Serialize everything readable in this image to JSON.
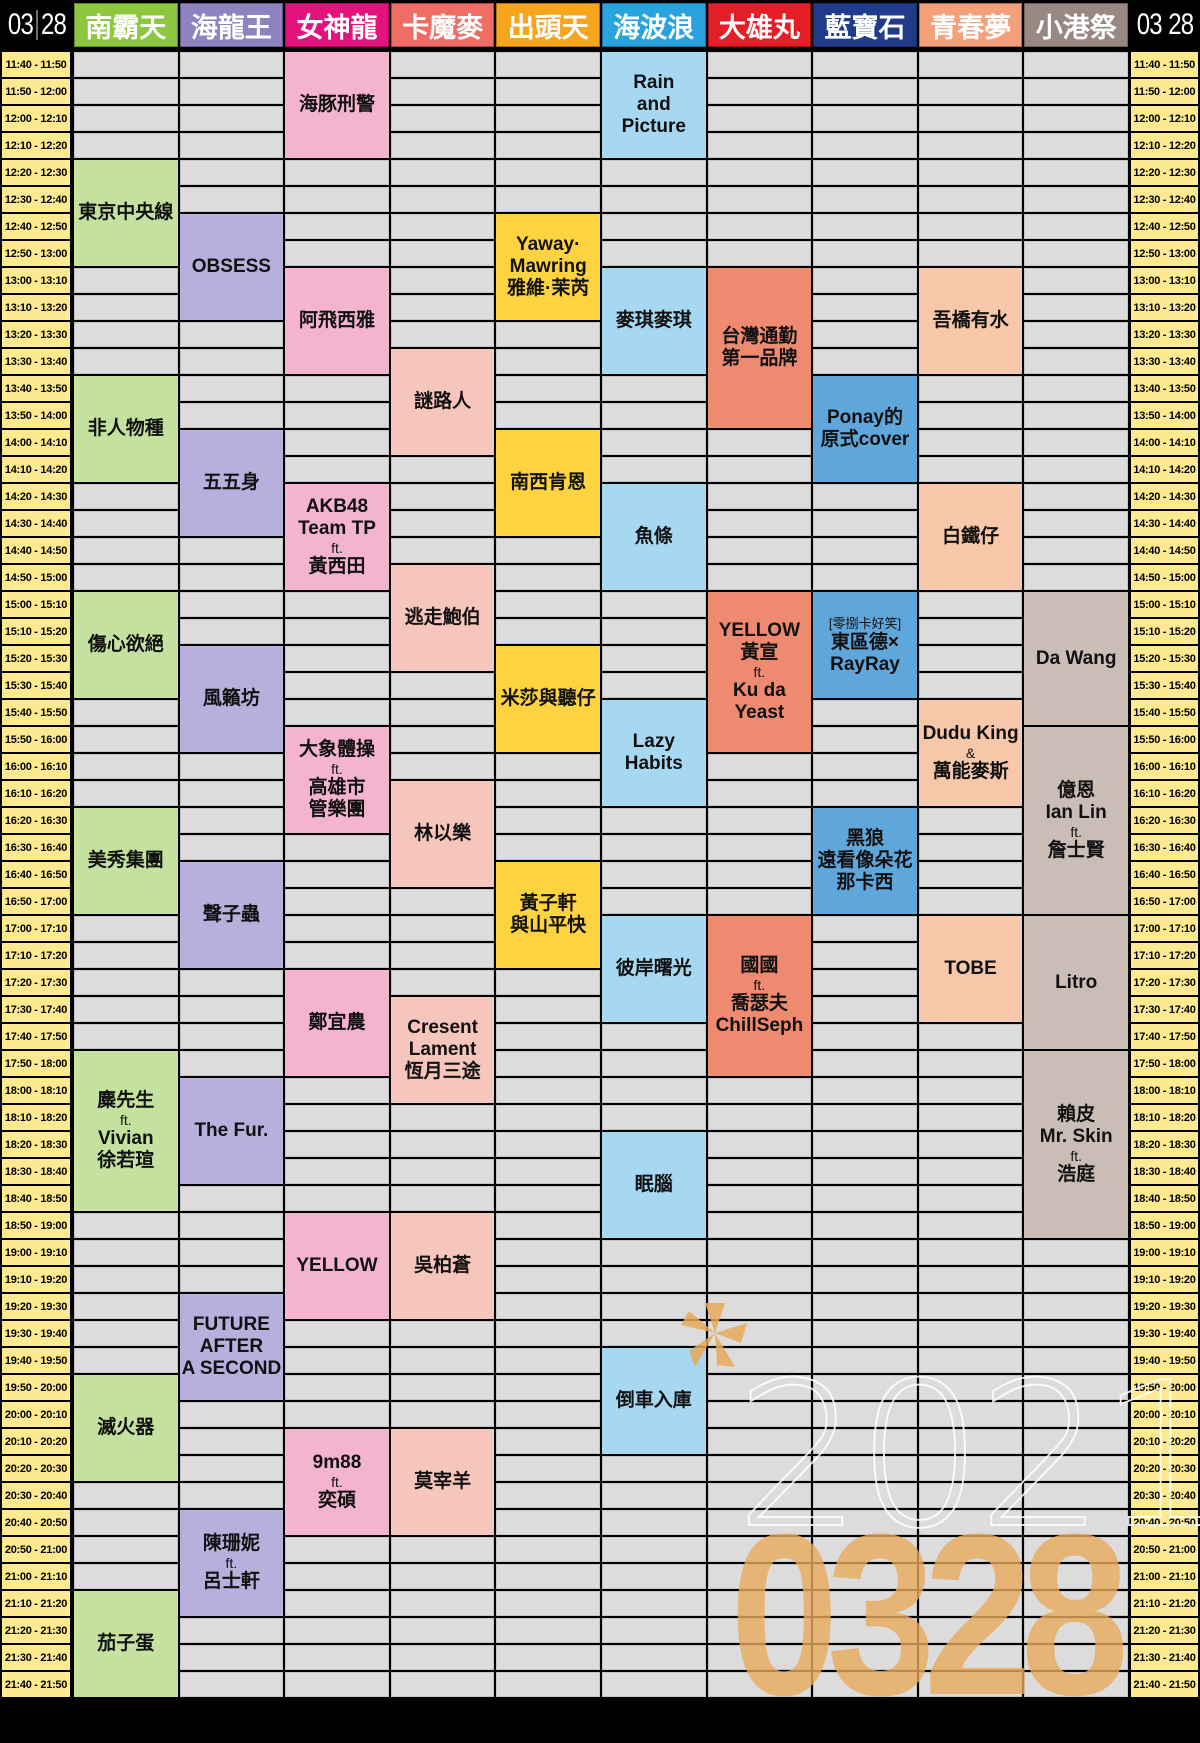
{
  "date": {
    "month": "03",
    "day": "28"
  },
  "stages": [
    {
      "name": "南霸天",
      "header_color": "#8dc63f",
      "block_color": "#c5e1a0",
      "performances": [
        {
          "start": "12:20",
          "end": "13:00",
          "lines": [
            "東京中央線"
          ]
        },
        {
          "start": "13:40",
          "end": "14:20",
          "lines": [
            "非人物種"
          ]
        },
        {
          "start": "15:00",
          "end": "15:40",
          "lines": [
            "傷心欲絕"
          ]
        },
        {
          "start": "16:20",
          "end": "17:00",
          "lines": [
            "美秀集團"
          ]
        },
        {
          "start": "17:50",
          "end": "18:50",
          "lines": [
            "麋先生",
            "ft.",
            "Vivian",
            "徐若瑄"
          ]
        },
        {
          "start": "19:50",
          "end": "20:30",
          "lines": [
            "滅火器"
          ]
        },
        {
          "start": "21:10",
          "end": "21:50",
          "lines": [
            "茄子蛋"
          ]
        }
      ]
    },
    {
      "name": "海龍王",
      "header_color": "#8f82c0",
      "block_color": "#b7afdc",
      "performances": [
        {
          "start": "12:40",
          "end": "13:20",
          "lines": [
            "OBSESS"
          ]
        },
        {
          "start": "14:00",
          "end": "14:40",
          "lines": [
            "五五身"
          ]
        },
        {
          "start": "15:20",
          "end": "16:00",
          "lines": [
            "風籟坊"
          ]
        },
        {
          "start": "16:40",
          "end": "17:20",
          "lines": [
            "聲子蟲"
          ]
        },
        {
          "start": "18:00",
          "end": "18:40",
          "lines": [
            "The Fur."
          ]
        },
        {
          "start": "19:20",
          "end": "20:00",
          "lines": [
            "FUTURE",
            "AFTER",
            "A SECOND"
          ]
        },
        {
          "start": "20:40",
          "end": "21:20",
          "lines": [
            "陳珊妮",
            "ft.",
            "呂士軒"
          ]
        }
      ]
    },
    {
      "name": "女神龍",
      "header_color": "#e4127c",
      "block_color": "#f4b4d0",
      "performances": [
        {
          "start": "11:40",
          "end": "12:20",
          "lines": [
            "海豚刑警"
          ]
        },
        {
          "start": "13:00",
          "end": "13:40",
          "lines": [
            "阿飛西雅"
          ]
        },
        {
          "start": "14:20",
          "end": "15:00",
          "lines": [
            "AKB48",
            "Team TP",
            "ft.",
            "黃西田"
          ]
        },
        {
          "start": "15:50",
          "end": "16:30",
          "lines": [
            "大象體操",
            "ft.",
            "高雄市",
            "管樂團"
          ]
        },
        {
          "start": "17:20",
          "end": "18:00",
          "lines": [
            "鄭宜農"
          ]
        },
        {
          "start": "18:50",
          "end": "19:30",
          "lines": [
            "YELLOW"
          ]
        },
        {
          "start": "20:10",
          "end": "20:50",
          "lines": [
            "9m88",
            "ft.",
            "奕碩"
          ]
        }
      ]
    },
    {
      "name": "卡魔麥",
      "header_color": "#ee6e66",
      "block_color": "#f6c5bb",
      "performances": [
        {
          "start": "13:30",
          "end": "14:10",
          "lines": [
            "謎路人"
          ]
        },
        {
          "start": "14:50",
          "end": "15:30",
          "lines": [
            "逃走鮑伯"
          ]
        },
        {
          "start": "16:10",
          "end": "16:50",
          "lines": [
            "林以樂"
          ]
        },
        {
          "start": "17:30",
          "end": "18:10",
          "lines": [
            "Cresent",
            "Lament",
            "恆月三途"
          ]
        },
        {
          "start": "18:50",
          "end": "19:30",
          "lines": [
            "吳柏蒼"
          ]
        },
        {
          "start": "20:10",
          "end": "20:50",
          "lines": [
            "莫宰羊"
          ]
        }
      ]
    },
    {
      "name": "出頭天",
      "header_color": "#f5a51e",
      "block_color": "#fdd440",
      "performances": [
        {
          "start": "12:40",
          "end": "13:20",
          "lines": [
            "Yaway·",
            "Mawring",
            "雅維·茉芮"
          ]
        },
        {
          "start": "14:00",
          "end": "14:40",
          "lines": [
            "南西肯恩"
          ]
        },
        {
          "start": "15:20",
          "end": "16:00",
          "lines": [
            "米莎與聽仔"
          ]
        },
        {
          "start": "16:40",
          "end": "17:20",
          "lines": [
            "黃子軒",
            "與山平快"
          ]
        }
      ]
    },
    {
      "name": "海波浪",
      "header_color": "#29a3dd",
      "block_color": "#a6d8f2",
      "performances": [
        {
          "start": "11:40",
          "end": "12:20",
          "lines": [
            "Rain",
            "and",
            "Picture"
          ]
        },
        {
          "start": "13:00",
          "end": "13:40",
          "lines": [
            "麥琪麥琪"
          ]
        },
        {
          "start": "14:20",
          "end": "15:00",
          "lines": [
            "魚條"
          ]
        },
        {
          "start": "15:40",
          "end": "16:20",
          "lines": [
            "Lazy",
            "Habits"
          ]
        },
        {
          "start": "17:00",
          "end": "17:40",
          "lines": [
            "彼岸曙光"
          ]
        },
        {
          "start": "18:20",
          "end": "19:00",
          "lines": [
            "眠腦"
          ]
        },
        {
          "start": "19:40",
          "end": "20:20",
          "lines": [
            "倒車入庫"
          ]
        }
      ]
    },
    {
      "name": "大雄丸",
      "header_color": "#e31e26",
      "block_color": "#ee8a6f",
      "performances": [
        {
          "start": "13:00",
          "end": "14:00",
          "lines": [
            "台灣通勤",
            "第一品牌"
          ]
        },
        {
          "start": "15:00",
          "end": "16:00",
          "lines": [
            "YELLOW",
            "黃宣",
            "ft.",
            "Ku da",
            "Yeast"
          ]
        },
        {
          "start": "17:00",
          "end": "18:00",
          "lines": [
            "國國",
            "ft.",
            "喬瑟夫",
            "ChillSeph"
          ]
        }
      ]
    },
    {
      "name": "藍寶石",
      "header_color": "#1f3b8a",
      "block_color": "#5fa6da",
      "performances": [
        {
          "start": "13:40",
          "end": "14:20",
          "lines": [
            "Ponay的",
            "原式cover"
          ]
        },
        {
          "start": "15:00",
          "end": "15:40",
          "lines": [
            "[零捌卡好笑]",
            "東區德×",
            "RayRay"
          ]
        },
        {
          "start": "16:20",
          "end": "17:00",
          "lines": [
            "黑狼",
            "遠看像朵花",
            "那卡西"
          ]
        }
      ]
    },
    {
      "name": "青春夢",
      "header_color": "#f3a07b",
      "block_color": "#f7c7a9",
      "performances": [
        {
          "start": "13:00",
          "end": "13:40",
          "lines": [
            "吾橋有水"
          ]
        },
        {
          "start": "14:20",
          "end": "15:00",
          "lines": [
            "白鐵仔"
          ]
        },
        {
          "start": "15:40",
          "end": "16:20",
          "lines": [
            "Dudu King",
            "&",
            "萬能麥斯"
          ]
        },
        {
          "start": "17:00",
          "end": "17:40",
          "lines": [
            "TOBE"
          ]
        }
      ]
    },
    {
      "name": "小港祭",
      "header_color": "#988884",
      "block_color": "#c9bdb6",
      "performances": [
        {
          "start": "15:00",
          "end": "15:50",
          "lines": [
            "Da Wang"
          ]
        },
        {
          "start": "15:50",
          "end": "17:00",
          "lines": [
            "億恩",
            "Ian Lin",
            "ft.",
            "詹士賢"
          ]
        },
        {
          "start": "17:00",
          "end": "17:50",
          "lines": [
            "Litro"
          ]
        },
        {
          "start": "17:50",
          "end": "19:00",
          "lines": [
            "賴皮",
            "Mr. Skin",
            "ft.",
            "浩庭"
          ]
        }
      ]
    }
  ],
  "time_slots": [
    "11:40 - 11:50",
    "11:50 - 12:00",
    "12:00 - 12:10",
    "12:10 - 12:20",
    "12:20 - 12:30",
    "12:30 - 12:40",
    "12:40 - 12:50",
    "12:50 - 13:00",
    "13:00 - 13:10",
    "13:10 - 13:20",
    "13:20 - 13:30",
    "13:30 - 13:40",
    "13:40 - 13:50",
    "13:50 - 14:00",
    "14:00 - 14:10",
    "14:10 - 14:20",
    "14:20 - 14:30",
    "14:30 - 14:40",
    "14:40 - 14:50",
    "14:50 - 15:00",
    "15:00 - 15:10",
    "15:10 - 15:20",
    "15:20 - 15:30",
    "15:30 - 15:40",
    "15:40 - 15:50",
    "15:50 - 16:00",
    "16:00 - 16:10",
    "16:10 - 16:20",
    "16:20 - 16:30",
    "16:30 - 16:40",
    "16:40 - 16:50",
    "16:50 - 17:00",
    "17:00 - 17:10",
    "17:10 - 17:20",
    "17:20 - 17:30",
    "17:30 - 17:40",
    "17:40 - 17:50",
    "17:50 - 18:00",
    "18:00 - 18:10",
    "18:10 - 18:20",
    "18:20 - 18:30",
    "18:30 - 18:40",
    "18:40 - 18:50",
    "18:50 - 19:00",
    "19:00 - 19:10",
    "19:10 - 19:20",
    "19:20 - 19:30",
    "19:30 - 19:40",
    "19:40 - 19:50",
    "19:50 - 20:00",
    "20:00 - 20:10",
    "20:10 - 20:20",
    "20:20 - 20:30",
    "20:30 - 20:40",
    "20:40 - 20:50",
    "20:50 - 21:00",
    "21:00 - 21:10",
    "21:10 - 21:20",
    "21:20 - 21:30",
    "21:30 - 21:40",
    "21:40 - 21:50"
  ],
  "watermark": {
    "year": "2021",
    "date": "0328",
    "logo_icon": "festival-star-logo-icon",
    "accent": "#e8aa5a"
  }
}
